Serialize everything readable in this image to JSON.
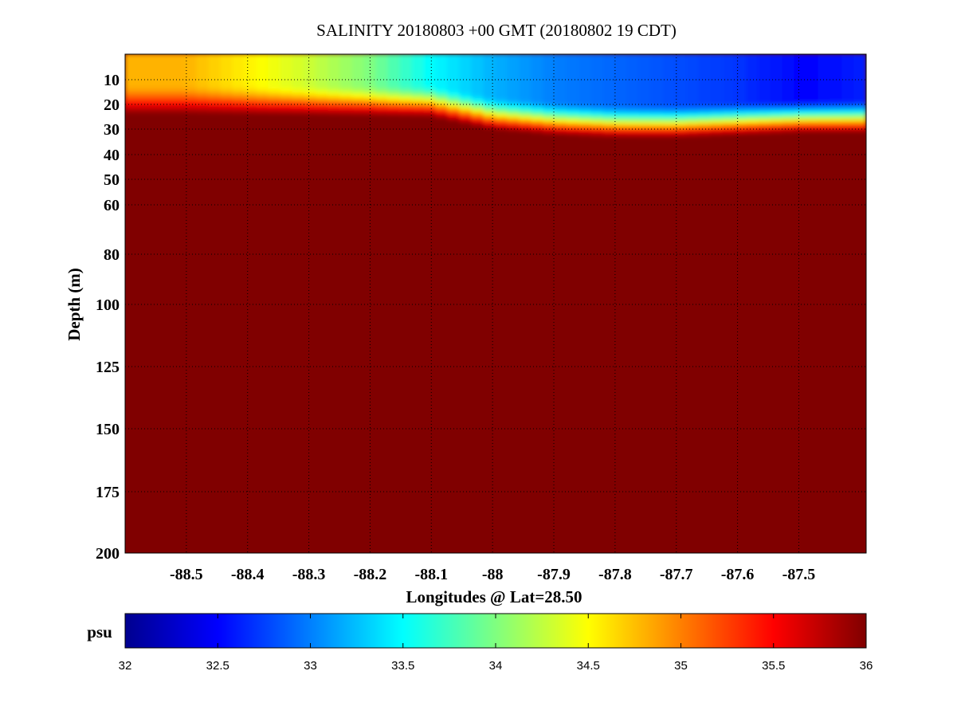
{
  "chart_data": {
    "type": "heatmap",
    "title": "SALINITY 20180803 +00 GMT (20180802 19 CDT)",
    "xlabel": "Longitudes @ Lat=28.50",
    "ylabel": "Depth (m)",
    "x_range": [
      -88.6,
      -87.39
    ],
    "y_range": [
      0,
      200
    ],
    "x_ticks": [
      "-88.5",
      "-88.4",
      "-88.3",
      "-88.2",
      "-88.1",
      "-88",
      "-87.9",
      "-87.8",
      "-87.7",
      "-87.6",
      "-87.5"
    ],
    "y_ticks": [
      "10",
      "20",
      "30",
      "40",
      "50",
      "60",
      "80",
      "100",
      "125",
      "150",
      "175",
      "200"
    ],
    "y_scale": "nonlinear (expanded near surface)",
    "grid": true,
    "colormap": "jet",
    "colorbar": {
      "label": "psu",
      "min": 32,
      "max": 36,
      "ticks": [
        "32",
        "32.5",
        "33",
        "33.5",
        "34",
        "34.5",
        "35",
        "35.5",
        "36"
      ]
    },
    "surface_salinity_profile": {
      "longitude": [
        -88.6,
        -88.5,
        -88.4,
        -88.3,
        -88.2,
        -88.1,
        -88.0,
        -87.9,
        -87.8,
        -87.7,
        -87.6,
        -87.5,
        -87.4
      ],
      "surface_psu": [
        34.8,
        34.8,
        34.55,
        34.3,
        34.0,
        33.5,
        33.2,
        33.0,
        32.9,
        32.8,
        32.7,
        32.5,
        32.6
      ],
      "halocline_depth_m": [
        12,
        12,
        12,
        12,
        12,
        12,
        17,
        19,
        20,
        20,
        19,
        18,
        18
      ],
      "deep_psu": 36.2
    }
  }
}
